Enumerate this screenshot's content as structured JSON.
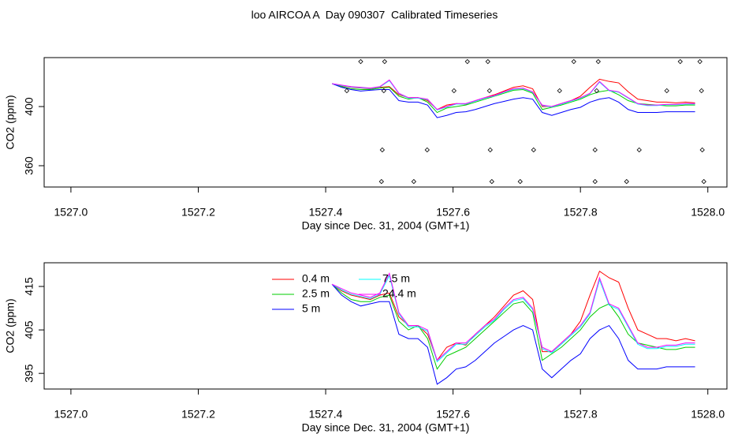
{
  "title": "loo AIRCOA A  Day 090307  Calibrated Timeseries",
  "chart_data": [
    {
      "type": "line",
      "x_label": "Day since Dec. 31, 2004 (GMT+1)",
      "y_label": "CO2 (ppm)",
      "xlim": [
        1526.958,
        1528.03
      ],
      "xticks": [
        {
          "value": 1527,
          "label": "1527.0"
        },
        1527.2,
        1527.4,
        1527.6,
        1527.8,
        {
          "value": 1528,
          "label": "1528.0"
        }
      ],
      "ylim": [
        345.6,
        433.1
      ],
      "yticks": [
        360,
        400
      ],
      "x": [
        1527.41,
        1527.425,
        1527.44,
        1527.455,
        1527.47,
        1527.485,
        1527.5,
        1527.515,
        1527.53,
        1527.545,
        1527.56,
        1527.575,
        1527.59,
        1527.605,
        1527.62,
        1527.635,
        1527.65,
        1527.665,
        1527.68,
        1527.695,
        1527.71,
        1527.725,
        1527.74,
        1527.755,
        1527.77,
        1527.785,
        1527.8,
        1527.815,
        1527.83,
        1527.845,
        1527.86,
        1527.875,
        1527.89,
        1527.905,
        1527.92,
        1527.935,
        1527.95,
        1527.965,
        1527.98
      ],
      "series": [
        {
          "color": "#ff0000",
          "values": [
            415.5,
            414,
            413,
            412.5,
            412,
            413,
            413.5,
            408,
            406,
            406,
            404,
            398,
            401,
            402,
            401.5,
            404,
            406,
            408,
            410.5,
            413,
            414,
            412,
            400,
            400,
            402,
            404,
            407,
            413,
            418.5,
            417,
            416,
            410,
            405,
            404,
            403,
            403,
            402.5,
            403,
            402.5
          ]
        },
        {
          "color": "#00cd00",
          "values": [
            415.5,
            413.5,
            412,
            411.5,
            411.5,
            412.5,
            413,
            407,
            405,
            406,
            403,
            396,
            399,
            400,
            401,
            403,
            405,
            407,
            409,
            411,
            411.5,
            409,
            398,
            399.5,
            401,
            403,
            405,
            408,
            410,
            411,
            408,
            404,
            402,
            401.5,
            401,
            400.5,
            400.5,
            401,
            401
          ]
        },
        {
          "color": "#0000ff",
          "values": [
            415.5,
            413,
            411.5,
            410.5,
            411,
            411.5,
            411.5,
            404,
            403,
            403,
            401,
            392.5,
            394,
            396,
            396.5,
            398,
            400,
            402,
            403.5,
            405,
            406,
            405,
            396,
            394,
            396,
            398,
            399.5,
            403,
            405,
            406,
            403,
            398,
            396,
            396,
            396,
            396.5,
            396.5,
            396.5,
            396.5
          ]
        },
        {
          "color": "#00ffff",
          "values": [
            415.5,
            414.2,
            413.2,
            412.7,
            412.2,
            413.2,
            417.5,
            408.7,
            405.7,
            405.7,
            404.7,
            397.7,
            399.7,
            401.7,
            401.7,
            403.7,
            405.7,
            407.2,
            409.7,
            411.7,
            412.2,
            409.7,
            400.7,
            399.7,
            401.7,
            403.7,
            405.7,
            408.7,
            416.5,
            410.7,
            409.7,
            405.7,
            401.7,
            400.7,
            400.7,
            401.2,
            401.2,
            401.7,
            401.7
          ]
        },
        {
          "color": "#ff00ff",
          "values": [
            415.5,
            414.5,
            413.5,
            413,
            412.5,
            413.5,
            418,
            409,
            406,
            406,
            405,
            398,
            400,
            402,
            402,
            404,
            406,
            407.5,
            410,
            412,
            412.5,
            410,
            401,
            400,
            402,
            404,
            406,
            409,
            417,
            411,
            410,
            406,
            402,
            401,
            401,
            401.5,
            401.5,
            402,
            402
          ]
        }
      ],
      "markers": {
        "x": [
          1527.455,
          1527.4926,
          1527.6225,
          1527.6547,
          1527.7896,
          1527.828,
          1527.9567,
          1527.9876,
          1527.4332,
          1527.4913,
          1527.6015,
          1527.6572,
          1527.7673,
          1527.8255,
          1527.9356,
          1527.9901,
          1527.4889,
          1527.5594,
          1527.6584,
          1527.7265,
          1527.823,
          1527.8923,
          1527.9913,
          1527.4876,
          1527.5384,
          1527.6609,
          1527.7054,
          1527.823,
          1527.8725,
          1527.9938
        ],
        "values": [
          430.4,
          430.4,
          430.4,
          430.4,
          430.4,
          430.4,
          430.4,
          430.4,
          410.7,
          410.7,
          410.7,
          410.7,
          410.7,
          410.7,
          410.7,
          410.7,
          370.7,
          370.7,
          370.7,
          370.7,
          370.7,
          370.7,
          370.7,
          349.3,
          349.3,
          349.3,
          349.3,
          349.3,
          349.3,
          349.3
        ]
      }
    },
    {
      "type": "line",
      "x_label": "Day since Dec. 31, 2004 (GMT+1)",
      "y_label": "CO2 (ppm)",
      "xlim": [
        1526.958,
        1528.03
      ],
      "xticks": [
        {
          "value": 1527,
          "label": "1527.0"
        },
        1527.2,
        1527.4,
        1527.6,
        1527.8,
        {
          "value": 1528,
          "label": "1528.0"
        }
      ],
      "ylim": [
        391.4,
        420.45
      ],
      "yticks": [
        395,
        405,
        415
      ],
      "legend": "top",
      "x": [
        1527.41,
        1527.425,
        1527.44,
        1527.455,
        1527.47,
        1527.485,
        1527.5,
        1527.515,
        1527.53,
        1527.545,
        1527.56,
        1527.575,
        1527.59,
        1527.605,
        1527.62,
        1527.635,
        1527.65,
        1527.665,
        1527.68,
        1527.695,
        1527.71,
        1527.725,
        1527.74,
        1527.755,
        1527.77,
        1527.785,
        1527.8,
        1527.815,
        1527.83,
        1527.845,
        1527.86,
        1527.875,
        1527.89,
        1527.905,
        1527.92,
        1527.935,
        1527.95,
        1527.965,
        1527.98
      ],
      "series": [
        {
          "name": "0.4 m",
          "color": "#ff0000",
          "values": [
            415.5,
            414,
            413,
            412.5,
            412,
            413,
            413.5,
            408,
            406,
            406,
            404,
            398,
            401,
            402,
            401.5,
            404,
            406,
            408,
            410.5,
            413,
            414,
            412,
            400,
            400,
            402,
            404,
            407,
            413,
            418.5,
            417,
            416,
            410,
            405,
            404,
            403,
            403,
            402.5,
            403,
            402.5
          ]
        },
        {
          "name": "2.5 m",
          "color": "#00cd00",
          "values": [
            415.5,
            413.5,
            412,
            411.5,
            411.5,
            412.5,
            413,
            407,
            405,
            406,
            403,
            396,
            399,
            400,
            401,
            403,
            405,
            407,
            409,
            411,
            411.5,
            409,
            398,
            399.5,
            401,
            403,
            405,
            408,
            410,
            411,
            408,
            404,
            402,
            401.5,
            401,
            400.5,
            400.5,
            401,
            401
          ]
        },
        {
          "name": "5 m",
          "color": "#0000ff",
          "values": [
            415.5,
            413,
            411.5,
            410.5,
            411,
            411.5,
            411.5,
            404,
            403,
            403,
            401,
            392.5,
            394,
            396,
            396.5,
            398,
            400,
            402,
            403.5,
            405,
            406,
            405,
            396,
            394,
            396,
            398,
            399.5,
            403,
            405,
            406,
            403,
            398,
            396,
            396,
            396,
            396.5,
            396.5,
            396.5,
            396.5
          ]
        },
        {
          "name": "7.5 m",
          "color": "#00ffff",
          "values": [
            415.5,
            414.2,
            413.2,
            412.7,
            412.2,
            413.2,
            417.5,
            408.7,
            405.7,
            405.7,
            404.7,
            397.7,
            399.7,
            401.7,
            401.7,
            403.7,
            405.7,
            407.2,
            409.7,
            411.7,
            412.2,
            409.7,
            400.7,
            399.7,
            401.7,
            403.7,
            405.7,
            408.7,
            416.5,
            410.7,
            409.7,
            405.7,
            401.7,
            400.7,
            400.7,
            401.2,
            401.2,
            401.7,
            401.7
          ]
        },
        {
          "name": "24.4 m",
          "color": "#ff00ff",
          "values": [
            415.5,
            414.5,
            413.5,
            413,
            412.5,
            413.5,
            418,
            409,
            406,
            406,
            405,
            398,
            400,
            402,
            402,
            404,
            406,
            407.5,
            410,
            412,
            412.5,
            410,
            401,
            400,
            402,
            404,
            406,
            409,
            417,
            411,
            410,
            406,
            402,
            401,
            401,
            401.5,
            401.5,
            402,
            402
          ]
        }
      ]
    }
  ]
}
